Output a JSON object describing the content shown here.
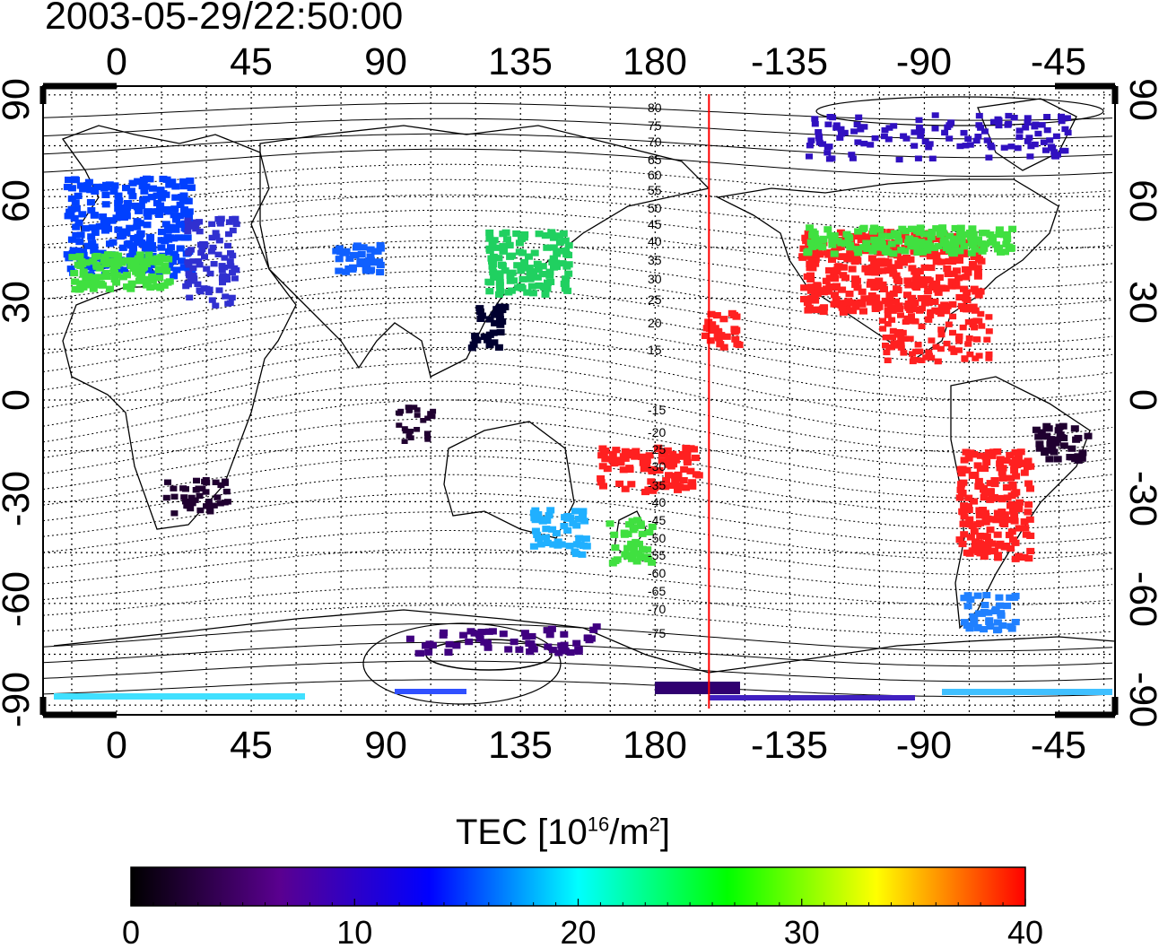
{
  "timestamp": "2003-05-29/22:50:00",
  "map": {
    "lon_ticks": [
      "0",
      "45",
      "90",
      "135",
      "180",
      "-135",
      "-90",
      "-45"
    ],
    "lat_ticks": [
      "90",
      "60",
      "30",
      "0",
      "-30",
      "-60",
      "-90"
    ],
    "magnetic_latitude_labels": [
      "80",
      "75",
      "70",
      "65",
      "60",
      "55",
      "50",
      "45",
      "40",
      "35",
      "30",
      "25",
      "20",
      "15",
      "-15",
      "-20",
      "-25",
      "-30",
      "-35",
      "-40",
      "-45",
      "-50",
      "-55",
      "-60",
      "-65",
      "-70",
      "-75"
    ],
    "terminator_longitude": -162,
    "terminator_color": "#ff0000"
  },
  "colorbar": {
    "title": "TEC  [10",
    "title_sup1": "16",
    "title_mid": "/m",
    "title_sup2": "2",
    "title_end": "]",
    "ticks": [
      "0",
      "10",
      "20",
      "30",
      "40"
    ],
    "min": 0,
    "max": 40,
    "colors": [
      "#000000",
      "#5a0090",
      "#0000ff",
      "#00ffff",
      "#00ff00",
      "#ffff00",
      "#ff0000"
    ]
  }
}
